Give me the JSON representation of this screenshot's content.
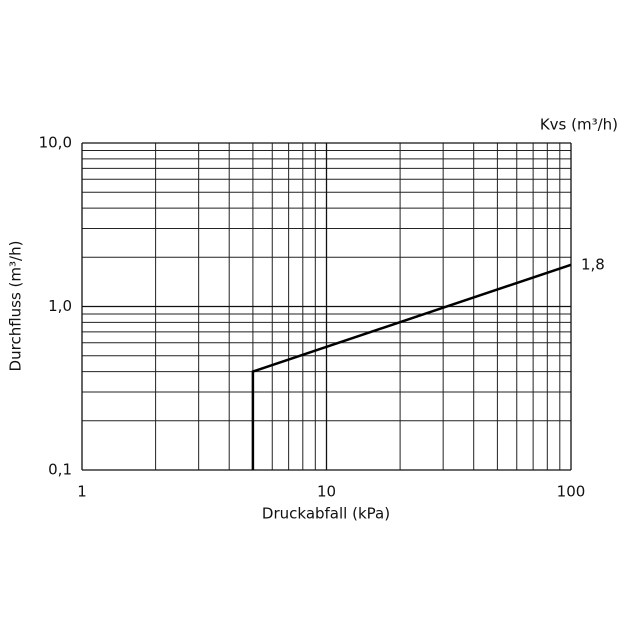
{
  "chart_data": {
    "type": "line",
    "xlabel": "Druckabfall (kPa)",
    "ylabel": "Durchfluss (m³/h)",
    "legend_title": "Kvs (m³/h)",
    "xscale": "log",
    "yscale": "log",
    "grid": true,
    "xlim": [
      1,
      100
    ],
    "ylim": [
      0.1,
      10
    ],
    "xticks": [
      1,
      10,
      100
    ],
    "yticks": [
      {
        "value": 0.1,
        "label": "0,1"
      },
      {
        "value": 1,
        "label": "1,0"
      },
      {
        "value": 10,
        "label": "10,0"
      }
    ],
    "x_minor_ticks": [
      2,
      3,
      4,
      5,
      6,
      7,
      8,
      9,
      20,
      30,
      40,
      50,
      60,
      70,
      80,
      90
    ],
    "y_minor_ticks": [
      0.2,
      0.3,
      0.4,
      0.5,
      0.6,
      0.7,
      0.8,
      0.9,
      2,
      3,
      4,
      5,
      6,
      7,
      8,
      9
    ],
    "series": [
      {
        "name": "1,8",
        "color": "#000000",
        "x": [
          5,
          5,
          100
        ],
        "values": [
          0.1,
          0.4,
          1.8
        ]
      }
    ]
  }
}
